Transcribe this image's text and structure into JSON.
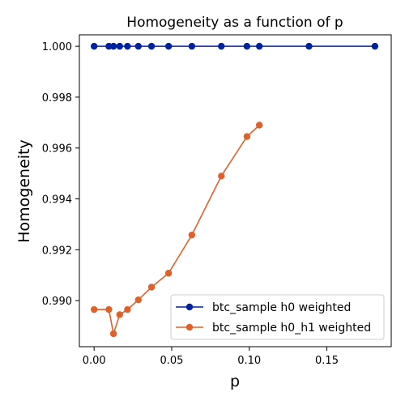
{
  "chart_data": {
    "type": "line",
    "title": "Homogeneity as a function of p",
    "xlabel": "p",
    "ylabel": "Homogeneity",
    "xlim": [
      -0.0095,
      0.1915
    ],
    "ylim": [
      0.98819,
      1.00045
    ],
    "xticks": [
      0.0,
      0.05,
      0.1,
      0.15
    ],
    "xtick_labels": [
      "0.00",
      "0.05",
      "0.10",
      "0.15"
    ],
    "yticks": [
      0.99,
      0.992,
      0.994,
      0.996,
      0.998,
      1.0
    ],
    "ytick_labels": [
      "0.990",
      "0.992",
      "0.994",
      "0.996",
      "0.998",
      "1.000"
    ],
    "grid": false,
    "legend_position": "lower-right",
    "series": [
      {
        "name": "btc_sample h0 weighted",
        "color": "#0022a0",
        "marker": "circle",
        "x": [
          0.0,
          0.0095,
          0.0125,
          0.0165,
          0.0215,
          0.0285,
          0.037,
          0.048,
          0.063,
          0.082,
          0.0985,
          0.1065,
          0.1385,
          0.181
        ],
        "y": [
          1.0,
          1.0,
          1.0,
          1.0,
          1.0,
          1.0,
          1.0,
          1.0,
          1.0,
          1.0,
          1.0,
          1.0,
          1.0,
          1.0
        ]
      },
      {
        "name": "btc_sample h0_h1 weighted",
        "color": "#e0602a",
        "marker": "circle",
        "x": [
          0.0,
          0.0095,
          0.0125,
          0.0165,
          0.0215,
          0.0285,
          0.037,
          0.048,
          0.063,
          0.082,
          0.0985,
          0.1065
        ],
        "y": [
          0.98965,
          0.98965,
          0.9887,
          0.98945,
          0.98965,
          0.99003,
          0.99053,
          0.99108,
          0.99258,
          0.9949,
          0.99645,
          0.9969
        ]
      }
    ]
  }
}
